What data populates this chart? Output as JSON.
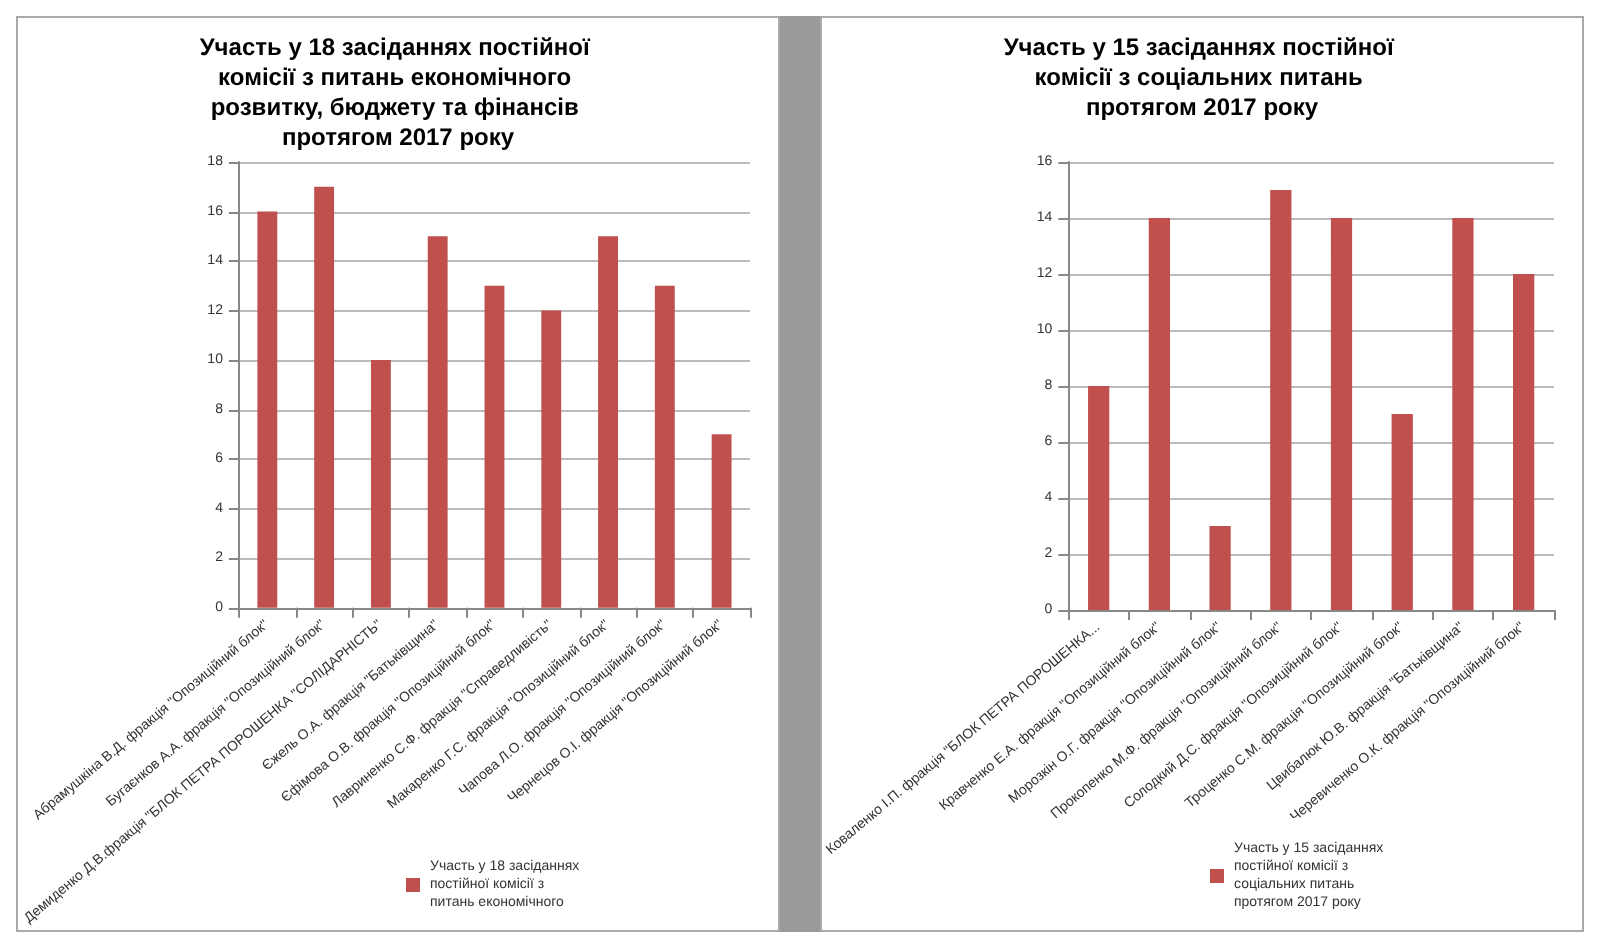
{
  "chart_data": [
    {
      "type": "bar",
      "title": "Участь у 18 засіданнях постійної комісії з питань економічного розвитку, бюджету та фінансів протягом 2017 року",
      "categories": [
        "Абрамушкіна В.Д. фракція \"Опозиційний блок\"",
        "Бугаєнков А.А. фракція \"Опозиційний блок\"",
        "Демиденко Д.В.фракція \"БЛОК ПЕТРА ПОРОШЕНКА \"СОЛІДАРНІСТЬ\"",
        "Єжель О.А. фракція \"Батьківщина\"",
        "Єфімова О.В. фракція \"Опозиційний блок\"",
        "Лавриненко С.Ф. фракція \"Справедливість\"",
        "Макаренко Г.С. фракція \"Опозиційний блок\"",
        "Чапова Л.О. фракція \"Опозиційний блок\"",
        "Чернецов О.І. фракція \"Опозиційний блок\""
      ],
      "series": [
        {
          "name": "Участь у 18 засіданнях постійної комісії з питань економічного",
          "color": "#c0504d",
          "values": [
            16,
            17,
            10,
            15,
            13,
            12,
            15,
            13,
            7
          ]
        }
      ],
      "ylim": [
        0,
        18
      ],
      "yticks": [
        0,
        2,
        4,
        6,
        8,
        10,
        12,
        14,
        16,
        18
      ],
      "grid": "y",
      "legend": "bottom right"
    },
    {
      "type": "bar",
      "title": "Участь у 15 засіданнях постійної комісії з соціальних питань протягом 2017 року",
      "categories": [
        "Коваленко І.П. фракція \"БЛОК ПЕТРА ПОРОШЕНКА...",
        "Кравченко Е.А. фракція \"Опозиційний блок\"",
        "Морозкін О.Г. фракція \"Опозиційний блок\"",
        "Прокопенко М.Ф. фракція \"Опозиційний блок\"",
        "Солодкий Д.С. фракція \"Опозиційний блок\"",
        "Троценко С.М. фракція \"Опозиційний блок\"",
        "Цвибалюк Ю.В. фракція \"Батьківщина\"",
        "Черевиченко О.К. фракція \"Опозиційний блок\""
      ],
      "series": [
        {
          "name": "Участь у 15 засіданнях постійної комісії з соціальних питань протягом 2017 року",
          "color": "#c0504d",
          "values": [
            8,
            14,
            3,
            15,
            14,
            7,
            14,
            12
          ]
        }
      ],
      "ylim": [
        0,
        16
      ],
      "yticks": [
        0,
        2,
        4,
        6,
        8,
        10,
        12,
        14,
        16
      ],
      "grid": "y",
      "legend": "bottom right"
    }
  ]
}
